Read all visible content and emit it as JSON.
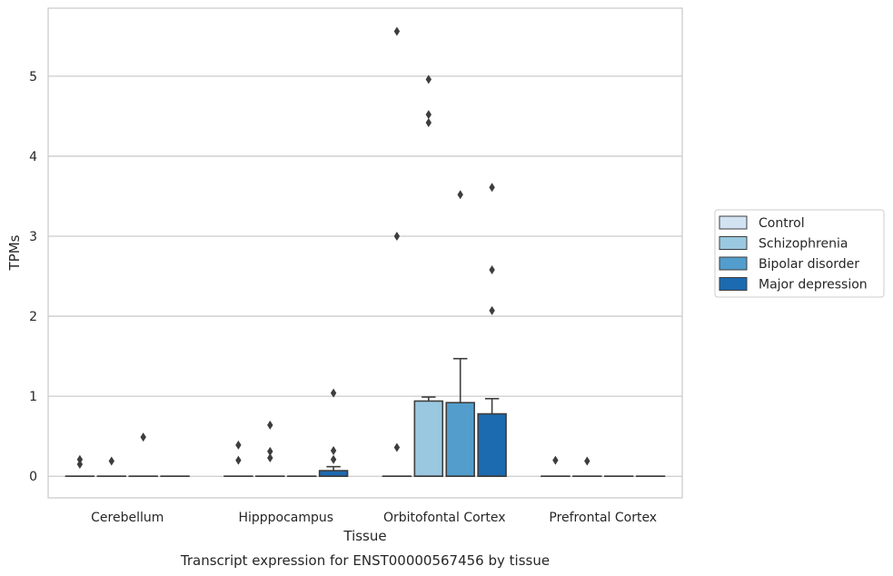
{
  "chart_data": {
    "type": "box",
    "title": "",
    "caption": "Transcript expression for ENST00000567456 by tissue",
    "xlabel": "Tissue",
    "ylabel": "TPMs",
    "ylim": [
      -0.27,
      5.85
    ],
    "yticks": [
      0,
      1,
      2,
      3,
      4,
      5
    ],
    "grid": true,
    "legend_position": "right",
    "categories": [
      "Cerebellum",
      "Hipppocampus",
      "Orbitofontal Cortex",
      "Prefrontal Cortex"
    ],
    "series": [
      {
        "name": "Control",
        "color": "#d1e3f3",
        "boxes": [
          {
            "q1": 0,
            "median": 0,
            "q3": 0,
            "whisker_low": 0,
            "whisker_high": 0,
            "outliers": [
              0.21,
              0.15
            ]
          },
          {
            "q1": 0,
            "median": 0,
            "q3": 0,
            "whisker_low": 0,
            "whisker_high": 0,
            "outliers": [
              0.39,
              0.2
            ]
          },
          {
            "q1": 0,
            "median": 0,
            "q3": 0,
            "whisker_low": 0,
            "whisker_high": 0,
            "outliers": [
              5.56,
              3.0,
              0.36
            ]
          },
          {
            "q1": 0,
            "median": 0,
            "q3": 0,
            "whisker_low": 0,
            "whisker_high": 0,
            "outliers": [
              0.2
            ]
          }
        ]
      },
      {
        "name": "Schizophrenia",
        "color": "#9ac8e0",
        "boxes": [
          {
            "q1": 0,
            "median": 0,
            "q3": 0,
            "whisker_low": 0,
            "whisker_high": 0,
            "outliers": [
              0.19
            ]
          },
          {
            "q1": 0,
            "median": 0,
            "q3": 0,
            "whisker_low": 0,
            "whisker_high": 0,
            "outliers": [
              0.64,
              0.31,
              0.23
            ]
          },
          {
            "q1": 0,
            "median": 0,
            "q3": 0.94,
            "whisker_low": 0,
            "whisker_high": 0.99,
            "outliers": [
              4.96,
              4.52,
              4.42
            ]
          },
          {
            "q1": 0,
            "median": 0,
            "q3": 0,
            "whisker_low": 0,
            "whisker_high": 0,
            "outliers": [
              0.19
            ]
          }
        ]
      },
      {
        "name": "Bipolar disorder",
        "color": "#529dcc",
        "boxes": [
          {
            "q1": 0,
            "median": 0,
            "q3": 0,
            "whisker_low": 0,
            "whisker_high": 0,
            "outliers": [
              0.49
            ]
          },
          {
            "q1": 0,
            "median": 0,
            "q3": 0,
            "whisker_low": 0,
            "whisker_high": 0,
            "outliers": []
          },
          {
            "q1": 0,
            "median": 0,
            "q3": 0.92,
            "whisker_low": 0,
            "whisker_high": 1.47,
            "outliers": [
              3.52
            ]
          },
          {
            "q1": 0,
            "median": 0,
            "q3": 0,
            "whisker_low": 0,
            "whisker_high": 0,
            "outliers": []
          }
        ]
      },
      {
        "name": "Major depression",
        "color": "#1c6aaf",
        "boxes": [
          {
            "q1": 0,
            "median": 0,
            "q3": 0,
            "whisker_low": 0,
            "whisker_high": 0,
            "outliers": []
          },
          {
            "q1": 0,
            "median": 0,
            "q3": 0.07,
            "whisker_low": 0,
            "whisker_high": 0.12,
            "outliers": [
              1.04,
              0.32,
              0.21
            ]
          },
          {
            "q1": 0,
            "median": 0,
            "q3": 0.78,
            "whisker_low": 0,
            "whisker_high": 0.97,
            "outliers": [
              3.61,
              2.58,
              2.07
            ]
          },
          {
            "q1": 0,
            "median": 0,
            "q3": 0,
            "whisker_low": 0,
            "whisker_high": 0,
            "outliers": []
          }
        ]
      }
    ]
  }
}
